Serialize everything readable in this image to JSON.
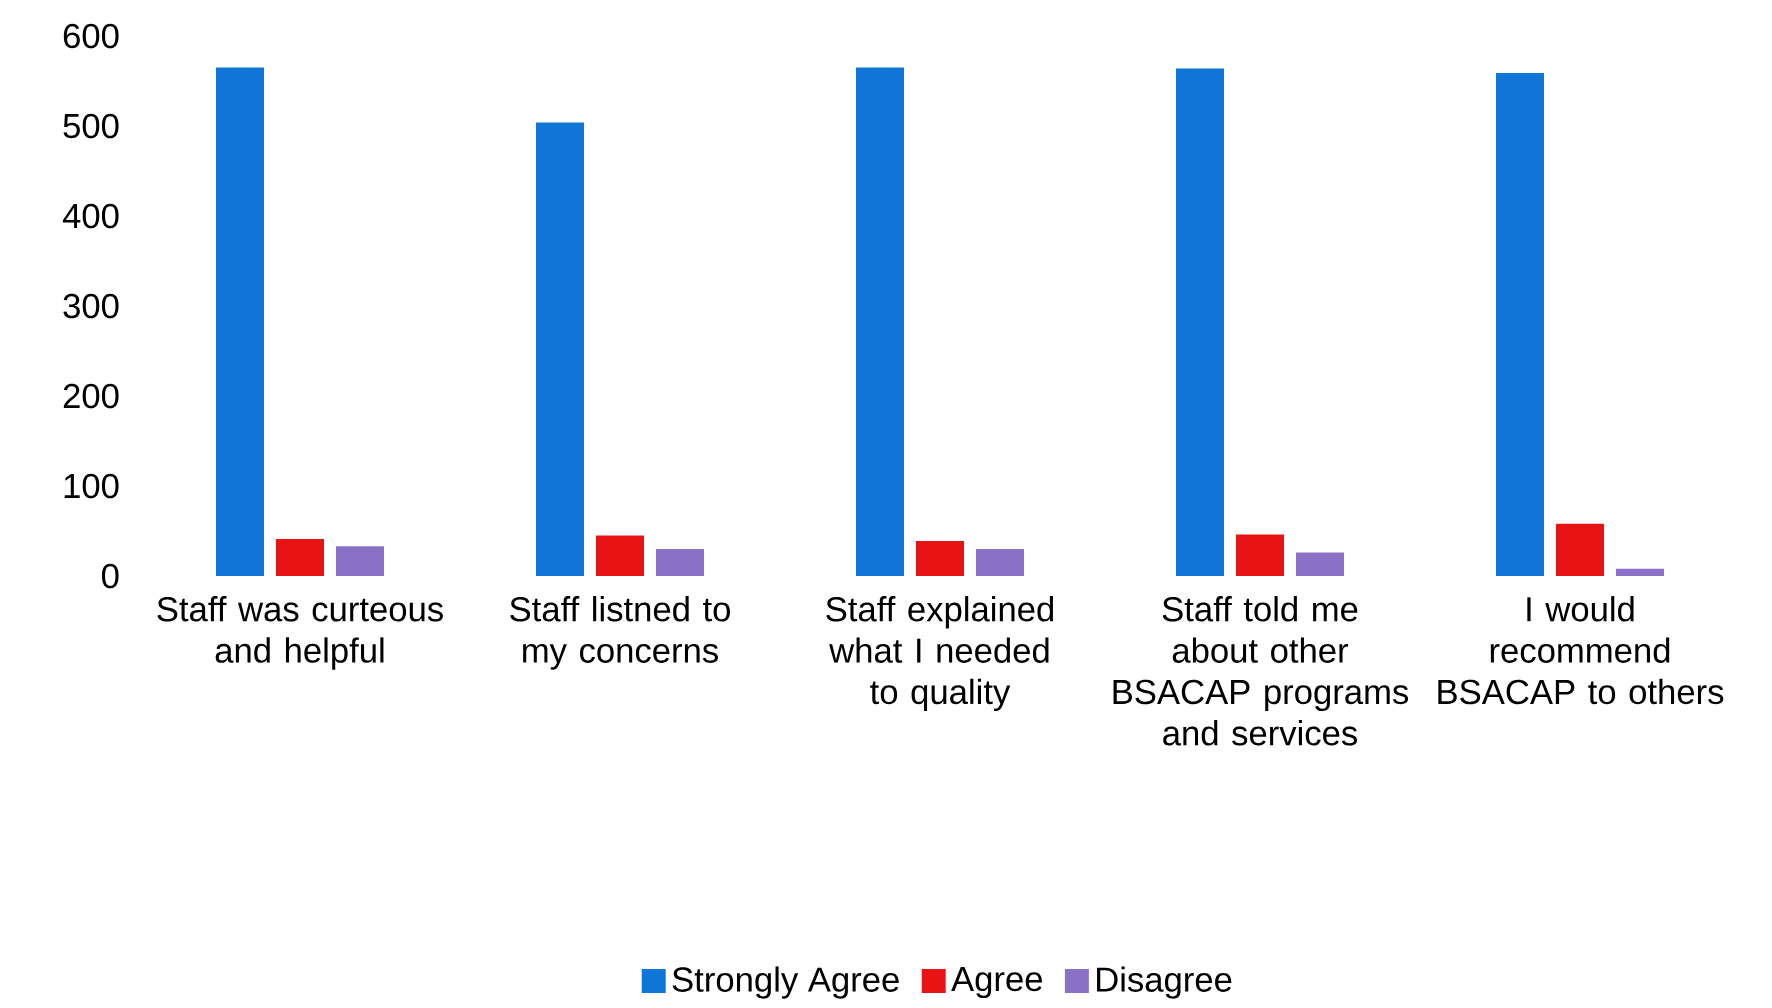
{
  "chart_data": {
    "type": "bar",
    "categories": [
      "Staff was curteous and helpful",
      "Staff listned to my concerns",
      "Staff explained what I needed to quality",
      "Staff told me about other BSACAP programs and services",
      "I would recommend BSACAP to others"
    ],
    "series": [
      {
        "name": "Strongly Agree",
        "color": "#0f76d8",
        "values": [
          565,
          504,
          565,
          564,
          559
        ]
      },
      {
        "name": "Agree",
        "color": "#e81414",
        "values": [
          41,
          45,
          39,
          46,
          58
        ]
      },
      {
        "name": "Disagree",
        "color": "#8a70c6",
        "values": [
          33,
          30,
          30,
          26,
          8
        ]
      }
    ],
    "ylim": [
      0,
      600
    ],
    "yticks": [
      0,
      100,
      200,
      300,
      400,
      500,
      600
    ],
    "legend": "bottom"
  }
}
